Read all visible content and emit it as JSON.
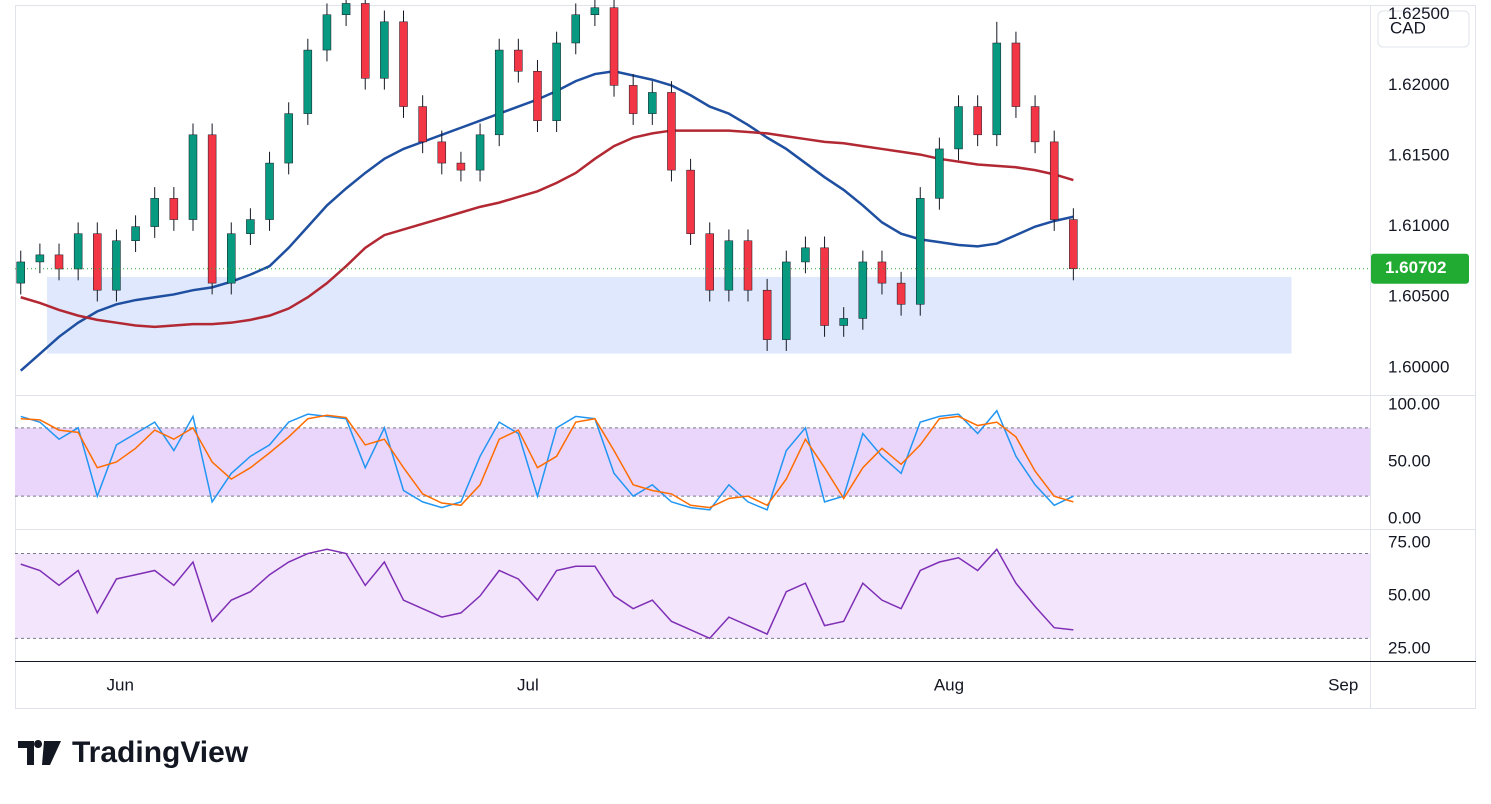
{
  "chart_data": [
    {
      "type": "candlestick",
      "currency": "CAD",
      "up_color": "#089981",
      "down_color": "#f23645",
      "wick_color": "#131722",
      "xlim": [
        -0.3,
        70.5
      ],
      "xticks": [
        {
          "value": 5.2,
          "label": "Jun"
        },
        {
          "value": 26.5,
          "label": "Jul"
        },
        {
          "value": 48.5,
          "label": "Aug"
        },
        {
          "value": 69.1,
          "label": "Sep"
        }
      ],
      "ylim": [
        1.59808,
        1.62569
      ],
      "yticks": [
        {
          "value": 1.6,
          "label": "1.60000"
        },
        {
          "value": 1.605,
          "label": "1.60500"
        },
        {
          "value": 1.61,
          "label": "1.61000"
        },
        {
          "value": 1.615,
          "label": "1.61500"
        },
        {
          "value": 1.62,
          "label": "1.62000"
        },
        {
          "value": 1.625,
          "label": "1.62500"
        }
      ],
      "last_price": {
        "value": 1.60702,
        "label": "1.60702",
        "color": "#22ab33"
      },
      "zone": {
        "xlim": [
          1.37,
          66.4
        ],
        "ylim": [
          1.60101,
          1.60644
        ],
        "color": "#dfe8fd"
      },
      "open": [
        1.606,
        1.6075,
        1.608,
        1.607,
        1.6095,
        1.6055,
        1.609,
        1.61,
        1.612,
        1.6105,
        1.6165,
        1.606,
        1.6095,
        1.6105,
        1.6145,
        1.618,
        1.6225,
        1.625,
        1.6258,
        1.6205,
        1.6245,
        1.6185,
        1.616,
        1.6145,
        1.614,
        1.6165,
        1.6225,
        1.621,
        1.6175,
        1.623,
        1.625,
        1.6255,
        1.62,
        1.618,
        1.6195,
        1.614,
        1.6095,
        1.6055,
        1.609,
        1.6055,
        1.602,
        1.6075,
        1.6085,
        1.603,
        1.6035,
        1.6075,
        1.606,
        1.6045,
        1.612,
        1.6155,
        1.6185,
        1.6165,
        1.623,
        1.6185,
        1.616,
        1.6105
      ],
      "high": [
        1.6083,
        1.6088,
        1.6088,
        1.6103,
        1.6103,
        1.6098,
        1.6108,
        1.6128,
        1.6128,
        1.6173,
        1.6173,
        1.6103,
        1.6113,
        1.6153,
        1.6188,
        1.6233,
        1.6258,
        1.6268,
        1.6266,
        1.6253,
        1.6253,
        1.6193,
        1.6168,
        1.6153,
        1.6173,
        1.6233,
        1.6233,
        1.6218,
        1.6238,
        1.6258,
        1.6265,
        1.6263,
        1.6208,
        1.6203,
        1.6203,
        1.6148,
        1.6103,
        1.6098,
        1.6098,
        1.6063,
        1.6083,
        1.6093,
        1.6093,
        1.6043,
        1.6083,
        1.6083,
        1.6068,
        1.6128,
        1.6163,
        1.6193,
        1.6193,
        1.6245,
        1.6238,
        1.6193,
        1.6168,
        1.6113
      ],
      "low": [
        1.6052,
        1.6067,
        1.6062,
        1.6062,
        1.6047,
        1.6047,
        1.6082,
        1.6092,
        1.6097,
        1.6097,
        1.6052,
        1.6052,
        1.6087,
        1.6097,
        1.6137,
        1.6172,
        1.6217,
        1.6242,
        1.6197,
        1.6197,
        1.6177,
        1.6152,
        1.6137,
        1.6132,
        1.6132,
        1.6157,
        1.6202,
        1.6167,
        1.6167,
        1.6222,
        1.6242,
        1.6192,
        1.6172,
        1.6172,
        1.6132,
        1.6087,
        1.6047,
        1.6047,
        1.6047,
        1.6012,
        1.6012,
        1.6067,
        1.6022,
        1.6022,
        1.6027,
        1.6052,
        1.6037,
        1.6037,
        1.6112,
        1.6147,
        1.6157,
        1.6157,
        1.6177,
        1.6152,
        1.6097,
        1.6062
      ],
      "close": [
        1.6075,
        1.608,
        1.607,
        1.6095,
        1.6055,
        1.609,
        1.61,
        1.612,
        1.6105,
        1.6165,
        1.606,
        1.6095,
        1.6105,
        1.6145,
        1.618,
        1.6225,
        1.625,
        1.6258,
        1.6205,
        1.6245,
        1.6185,
        1.616,
        1.6145,
        1.614,
        1.6165,
        1.6225,
        1.621,
        1.6175,
        1.623,
        1.625,
        1.6255,
        1.62,
        1.618,
        1.6195,
        1.614,
        1.6095,
        1.6055,
        1.609,
        1.6055,
        1.602,
        1.6075,
        1.6085,
        1.603,
        1.6035,
        1.6075,
        1.606,
        1.6045,
        1.612,
        1.6155,
        1.6185,
        1.6165,
        1.623,
        1.6185,
        1.616,
        1.6105,
        1.60702
      ],
      "overlays": [
        {
          "color": "#1e4fa0",
          "values": [
            1.5998,
            1.601,
            1.6022,
            1.6032,
            1.604,
            1.6045,
            1.6048,
            1.605,
            1.6052,
            1.6055,
            1.6057,
            1.6061,
            1.6066,
            1.6072,
            1.6085,
            1.61,
            1.6115,
            1.6127,
            1.6138,
            1.6148,
            1.6155,
            1.616,
            1.6165,
            1.617,
            1.6175,
            1.618,
            1.6185,
            1.619,
            1.6196,
            1.6203,
            1.6208,
            1.621,
            1.6207,
            1.6204,
            1.62,
            1.6193,
            1.6185,
            1.618,
            1.6172,
            1.6163,
            1.6155,
            1.6145,
            1.6135,
            1.6126,
            1.6115,
            1.6103,
            1.6095,
            1.6091,
            1.6089,
            1.6087,
            1.6086,
            1.6088,
            1.6094,
            1.61,
            1.6104,
            1.6107
          ]
        },
        {
          "color": "#b22833",
          "values": [
            1.605,
            1.6046,
            1.6041,
            1.6037,
            1.6034,
            1.6032,
            1.603,
            1.6029,
            1.603,
            1.6031,
            1.6031,
            1.6032,
            1.6034,
            1.6037,
            1.6042,
            1.605,
            1.606,
            1.6072,
            1.6085,
            1.6094,
            1.6098,
            1.6102,
            1.6106,
            1.611,
            1.6114,
            1.6117,
            1.6121,
            1.6125,
            1.6131,
            1.6138,
            1.6148,
            1.6157,
            1.6163,
            1.6166,
            1.6168,
            1.6168,
            1.6168,
            1.6168,
            1.6167,
            1.6166,
            1.6164,
            1.6162,
            1.616,
            1.6159,
            1.6157,
            1.6155,
            1.6153,
            1.6151,
            1.6148,
            1.6146,
            1.6144,
            1.6143,
            1.6142,
            1.614,
            1.6137,
            1.6133
          ]
        }
      ]
    },
    {
      "type": "line",
      "ylim": [
        -8.8,
        108.8
      ],
      "yticks": [
        {
          "value": 0,
          "label": "0.00"
        },
        {
          "value": 50,
          "label": "50.00"
        },
        {
          "value": 100,
          "label": "100.00"
        }
      ],
      "band": [
        20,
        80
      ],
      "band_color": "#ead6fb",
      "series": [
        {
          "color": "#2196f3",
          "values": [
            90,
            85,
            70,
            80,
            20,
            65,
            75,
            85,
            60,
            90,
            15,
            40,
            55,
            65,
            85,
            92,
            90,
            88,
            45,
            80,
            25,
            15,
            10,
            15,
            55,
            85,
            75,
            20,
            80,
            90,
            88,
            40,
            20,
            30,
            15,
            10,
            8,
            30,
            15,
            8,
            60,
            80,
            15,
            20,
            75,
            55,
            40,
            85,
            90,
            92,
            75,
            95,
            55,
            30,
            12,
            20
          ]
        },
        {
          "color": "#ff6d00",
          "values": [
            88,
            87,
            78,
            76,
            45,
            50,
            62,
            78,
            70,
            80,
            50,
            35,
            45,
            58,
            72,
            88,
            91,
            89,
            65,
            70,
            45,
            22,
            14,
            12,
            30,
            70,
            78,
            45,
            55,
            85,
            88,
            60,
            30,
            25,
            22,
            12,
            10,
            18,
            20,
            12,
            35,
            70,
            45,
            18,
            45,
            62,
            48,
            65,
            88,
            90,
            82,
            85,
            72,
            42,
            20,
            15
          ]
        }
      ]
    },
    {
      "type": "line",
      "ylim": [
        19.3,
        81.1
      ],
      "yticks": [
        {
          "value": 25,
          "label": "25.00"
        },
        {
          "value": 50,
          "label": "50.00"
        },
        {
          "value": 75,
          "label": "75.00"
        }
      ],
      "band": [
        30,
        70
      ],
      "band_color": "#f3e5fc",
      "series": [
        {
          "color": "#7e2fb5",
          "values": [
            65,
            62,
            55,
            62,
            42,
            58,
            60,
            62,
            55,
            66,
            38,
            48,
            52,
            60,
            66,
            70,
            72,
            70,
            55,
            66,
            48,
            44,
            40,
            42,
            50,
            62,
            58,
            48,
            62,
            64,
            64,
            50,
            44,
            48,
            38,
            34,
            30,
            40,
            36,
            32,
            52,
            56,
            36,
            38,
            56,
            48,
            44,
            62,
            66,
            68,
            62,
            72,
            56,
            45,
            35,
            34
          ]
        }
      ]
    }
  ],
  "brand": "TradingView"
}
